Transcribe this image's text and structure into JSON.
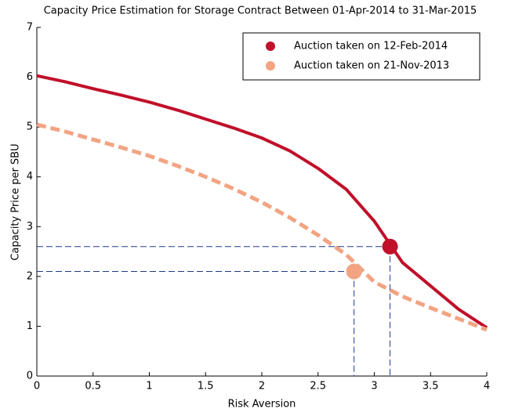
{
  "chart_data": {
    "type": "line",
    "title": "Capacity Price Estimation for Storage Contract Between 01-Apr-2014 to 31-Mar-2015",
    "x_label": "Risk Aversion",
    "y_label": "Capacity Price per SBU",
    "x": [
      0,
      0.25,
      0.5,
      0.75,
      1,
      1.25,
      1.5,
      1.75,
      2,
      2.25,
      2.5,
      2.75,
      3,
      3.25,
      3.5,
      3.75,
      4
    ],
    "series": [
      {
        "name": "Auction taken on 12-Feb-2014",
        "color": "#c0102a",
        "style": "solid",
        "values": [
          6.03,
          5.91,
          5.77,
          5.64,
          5.5,
          5.34,
          5.16,
          4.98,
          4.78,
          4.52,
          4.17,
          3.75,
          3.11,
          2.28,
          1.81,
          1.34,
          0.97
        ],
        "highlight": {
          "x": 3.14,
          "y": 2.6
        }
      },
      {
        "name": "Auction taken on 21-Nov-2013",
        "color": "#f2a482",
        "style": "dashed",
        "values": [
          5.05,
          4.91,
          4.75,
          4.59,
          4.42,
          4.22,
          4.0,
          3.76,
          3.49,
          3.18,
          2.83,
          2.44,
          1.89,
          1.6,
          1.37,
          1.15,
          0.93
        ],
        "highlight": {
          "x": 2.82,
          "y": 2.1
        }
      }
    ],
    "xlim": [
      0,
      4
    ],
    "xticks": [
      0,
      0.5,
      1,
      1.5,
      2,
      2.5,
      3,
      3.5,
      4
    ],
    "ylim": [
      0,
      7
    ],
    "yticks": [
      0,
      1,
      2,
      3,
      4,
      5,
      6,
      7
    ],
    "legend": "upper right"
  }
}
